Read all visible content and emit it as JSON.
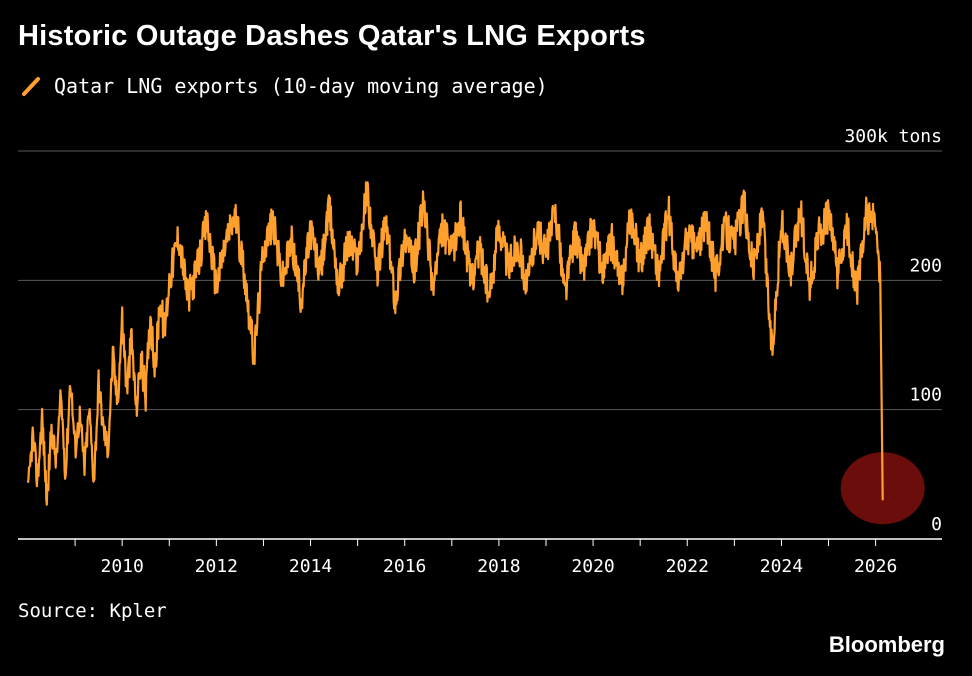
{
  "header": {
    "title": "Historic Outage Dashes Qatar's LNG Exports"
  },
  "legend": {
    "label": "Qatar LNG exports (10-day moving average)",
    "color": "#ff9f2e"
  },
  "footer": {
    "source": "Source: Kpler",
    "brand": "Bloomberg"
  },
  "chart_data": {
    "type": "line",
    "title": "Historic Outage Dashes Qatar's LNG Exports",
    "ylabel": "300k tons",
    "ylim": [
      0,
      300
    ],
    "xlim": [
      2008.0,
      2026.9
    ],
    "y_ticks": [
      {
        "value": 300,
        "label": "300k tons"
      },
      {
        "value": 200,
        "label": "200"
      },
      {
        "value": 100,
        "label": "100"
      },
      {
        "value": 0,
        "label": "0"
      }
    ],
    "x_ticks": [
      {
        "value": 2010,
        "label": "2010"
      },
      {
        "value": 2012,
        "label": "2012"
      },
      {
        "value": 2014,
        "label": "2014"
      },
      {
        "value": 2016,
        "label": "2016"
      },
      {
        "value": 2018,
        "label": "2018"
      },
      {
        "value": 2020,
        "label": "2020"
      },
      {
        "value": 2022,
        "label": "2022"
      },
      {
        "value": 2024,
        "label": "2024"
      },
      {
        "value": 2026,
        "label": "2026"
      }
    ],
    "grid": true,
    "series": [
      {
        "name": "Qatar LNG exports (10-day moving average)",
        "color": "#ff9f2e",
        "x": [
          2008.0,
          2008.1,
          2008.2,
          2008.3,
          2008.4,
          2008.5,
          2008.6,
          2008.7,
          2008.8,
          2008.9,
          2009.0,
          2009.1,
          2009.2,
          2009.3,
          2009.4,
          2009.5,
          2009.6,
          2009.7,
          2009.8,
          2009.9,
          2010.0,
          2010.1,
          2010.2,
          2010.3,
          2010.4,
          2010.5,
          2010.6,
          2010.7,
          2010.8,
          2010.9,
          2011.0,
          2011.2,
          2011.4,
          2011.6,
          2011.8,
          2012.0,
          2012.2,
          2012.4,
          2012.6,
          2012.8,
          2013.0,
          2013.2,
          2013.4,
          2013.6,
          2013.8,
          2014.0,
          2014.2,
          2014.4,
          2014.6,
          2014.8,
          2015.0,
          2015.2,
          2015.4,
          2015.6,
          2015.8,
          2016.0,
          2016.2,
          2016.4,
          2016.6,
          2016.8,
          2017.0,
          2017.2,
          2017.4,
          2017.6,
          2017.8,
          2018.0,
          2018.2,
          2018.4,
          2018.6,
          2018.8,
          2019.0,
          2019.2,
          2019.4,
          2019.6,
          2019.8,
          2020.0,
          2020.2,
          2020.4,
          2020.6,
          2020.8,
          2021.0,
          2021.2,
          2021.4,
          2021.6,
          2021.8,
          2022.0,
          2022.2,
          2022.4,
          2022.6,
          2022.8,
          2023.0,
          2023.2,
          2023.4,
          2023.6,
          2023.8,
          2024.0,
          2024.2,
          2024.4,
          2024.6,
          2024.8,
          2025.0,
          2025.2,
          2025.4,
          2025.6,
          2025.8,
          2026.0,
          2026.1,
          2026.15
        ],
        "values": [
          35,
          80,
          45,
          95,
          30,
          85,
          60,
          110,
          50,
          125,
          70,
          95,
          55,
          100,
          45,
          120,
          85,
          70,
          140,
          105,
          170,
          115,
          155,
          100,
          140,
          110,
          175,
          130,
          185,
          160,
          200,
          235,
          185,
          210,
          245,
          195,
          230,
          250,
          205,
          140,
          225,
          245,
          200,
          230,
          185,
          240,
          205,
          255,
          195,
          230,
          215,
          270,
          205,
          245,
          185,
          235,
          210,
          260,
          195,
          240,
          220,
          250,
          200,
          225,
          185,
          245,
          210,
          230,
          195,
          240,
          220,
          255,
          190,
          235,
          210,
          245,
          205,
          230,
          195,
          250,
          215,
          240,
          205,
          255,
          195,
          235,
          225,
          245,
          205,
          240,
          230,
          260,
          210,
          250,
          145,
          245,
          205,
          255,
          195,
          235,
          250,
          205,
          240,
          190,
          250,
          245,
          200,
          30
        ]
      }
    ]
  }
}
